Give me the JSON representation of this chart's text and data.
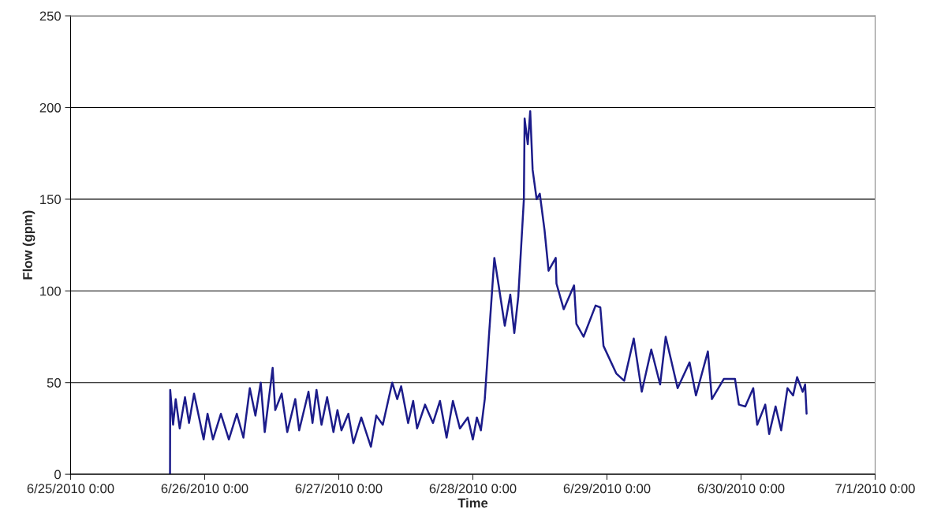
{
  "chart_data": {
    "type": "line",
    "xlabel": "Time",
    "ylabel": "Flow (gpm)",
    "xlim": [
      "2010-06-25T00:00",
      "2010-07-01T00:00"
    ],
    "xticks": [
      {
        "value": "2010-06-25T00:00",
        "label": "6/25/2010 0:00"
      },
      {
        "value": "2010-06-26T00:00",
        "label": "6/26/2010 0:00"
      },
      {
        "value": "2010-06-27T00:00",
        "label": "6/27/2010 0:00"
      },
      {
        "value": "2010-06-28T00:00",
        "label": "6/28/2010 0:00"
      },
      {
        "value": "2010-06-29T00:00",
        "label": "6/29/2010 0:00"
      },
      {
        "value": "2010-06-30T00:00",
        "label": "6/30/2010 0:00"
      },
      {
        "value": "2010-07-01T00:00",
        "label": "7/1/2010 0:00"
      }
    ],
    "ylim": [
      0,
      250
    ],
    "yticks": [
      0,
      50,
      100,
      150,
      200,
      250
    ],
    "grid": "y",
    "legend": false,
    "marker": "none",
    "line_style": "solid",
    "series": [
      {
        "color": "#1c1c8a",
        "x": [
          "2010-06-25T17:48",
          "2010-06-25T17:50",
          "2010-06-25T18:21",
          "2010-06-25T18:49",
          "2010-06-25T19:32",
          "2010-06-25T20:29",
          "2010-06-25T21:12",
          "2010-06-25T22:06",
          "2010-06-25T23:49",
          "2010-06-26T00:31",
          "2010-06-26T01:29",
          "2010-06-26T02:54",
          "2010-06-26T04:20",
          "2010-06-26T05:45",
          "2010-06-26T06:56",
          "2010-06-26T08:05",
          "2010-06-26T09:05",
          "2010-06-26T10:02",
          "2010-06-26T10:45",
          "2010-06-26T12:10",
          "2010-06-26T12:38",
          "2010-06-26T13:47",
          "2010-06-26T14:47",
          "2010-06-26T16:13",
          "2010-06-26T16:55",
          "2010-06-26T18:35",
          "2010-06-26T19:18",
          "2010-06-26T20:01",
          "2010-06-26T20:55",
          "2010-06-26T21:55",
          "2010-06-26T23:03",
          "2010-06-26T23:46",
          "2010-06-27T00:29",
          "2010-06-27T01:43",
          "2010-06-27T02:37",
          "2010-06-27T04:02",
          "2010-06-27T05:45",
          "2010-06-27T06:43",
          "2010-06-27T07:53",
          "2010-06-27T09:34",
          "2010-06-27T10:28",
          "2010-06-27T11:10",
          "2010-06-27T12:25",
          "2010-06-27T13:19",
          "2010-06-27T14:01",
          "2010-06-27T15:27",
          "2010-06-27T16:52",
          "2010-06-27T18:07",
          "2010-06-27T19:18",
          "2010-06-27T20:26",
          "2010-06-27T21:41",
          "2010-06-27T23:06",
          "2010-06-28T00:00",
          "2010-06-28T00:43",
          "2010-06-28T01:26",
          "2010-06-28T02:08",
          "2010-06-28T02:51",
          "2010-06-28T03:51",
          "2010-06-28T04:34",
          "2010-06-28T05:43",
          "2010-06-28T06:42",
          "2010-06-28T07:25",
          "2010-06-28T08:08",
          "2010-06-28T09:08",
          "2010-06-28T09:16",
          "2010-06-28T09:50",
          "2010-06-28T10:16",
          "2010-06-28T10:42",
          "2010-06-28T11:25",
          "2010-06-28T11:59",
          "2010-06-28T12:50",
          "2010-06-28T13:33",
          "2010-06-28T14:50",
          "2010-06-28T14:58",
          "2010-06-28T16:16",
          "2010-06-28T18:07",
          "2010-06-28T18:32",
          "2010-06-28T19:49",
          "2010-06-28T21:58",
          "2010-06-28T22:49",
          "2010-06-28T23:23",
          "2010-06-29T01:40",
          "2010-06-29T03:05",
          "2010-06-29T04:48",
          "2010-06-29T06:14",
          "2010-06-29T07:56",
          "2010-06-29T09:31",
          "2010-06-29T10:31",
          "2010-06-29T12:39",
          "2010-06-29T14:47",
          "2010-06-29T15:56",
          "2010-06-29T18:04",
          "2010-06-29T18:47",
          "2010-06-29T20:55",
          "2010-06-29T22:55",
          "2010-06-29T23:37",
          "2010-06-30T00:46",
          "2010-06-30T02:11",
          "2010-06-30T02:54",
          "2010-06-30T04:20",
          "2010-06-30T05:02",
          "2010-06-30T06:11",
          "2010-06-30T07:11",
          "2010-06-30T08:19",
          "2010-06-30T09:19",
          "2010-06-30T10:02",
          "2010-06-30T11:02",
          "2010-06-30T11:28",
          "2010-06-30T11:44"
        ],
        "values": [
          0,
          46,
          27,
          41,
          25,
          42,
          28,
          44,
          19,
          33,
          19,
          33,
          19,
          33,
          20,
          47,
          32,
          50,
          23,
          58,
          35,
          44,
          23,
          41,
          24,
          45,
          28,
          46,
          27,
          42,
          23,
          35,
          24,
          33,
          17,
          31,
          15,
          32,
          27,
          50,
          41,
          48,
          28,
          40,
          25,
          38,
          28,
          40,
          20,
          40,
          25,
          31,
          19,
          31,
          24,
          41,
          74,
          118,
          104,
          81,
          98,
          77,
          97,
          150,
          194,
          180,
          198,
          166,
          150,
          153,
          133,
          111,
          118,
          104,
          90,
          103,
          82,
          75,
          92,
          91,
          70,
          55,
          51,
          74,
          45,
          68,
          49,
          75,
          47,
          61,
          43,
          67,
          41,
          52,
          52,
          38,
          37,
          47,
          27,
          38,
          22,
          37,
          24,
          47,
          43,
          53,
          45,
          49,
          33
        ]
      }
    ]
  }
}
